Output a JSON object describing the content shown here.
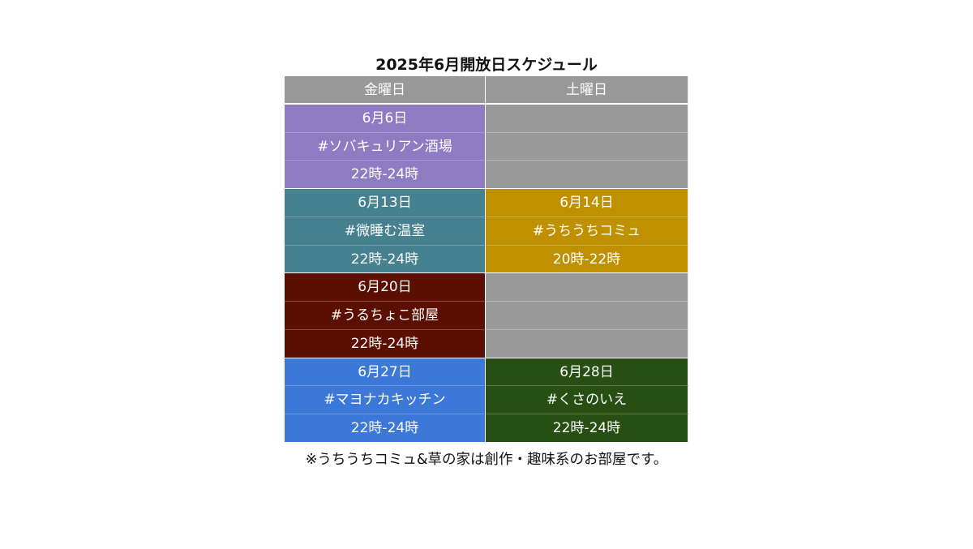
{
  "title": "2025年6月開放日スケジュール",
  "headers": {
    "friday": "金曜日",
    "saturday": "土曜日"
  },
  "colors": {
    "header": "#999999",
    "empty": "#999999",
    "week1_friday": "#8e7cc3",
    "week2_friday": "#45818e",
    "week2_saturday": "#bf9000",
    "week3_friday": "#5b0f00",
    "week4_friday": "#3c78d8",
    "week4_saturday": "#274e13"
  },
  "weeks": [
    {
      "friday": {
        "date": "6月6日",
        "room": "#ソバキュリアン酒場",
        "time": "22時-24時"
      },
      "saturday": null
    },
    {
      "friday": {
        "date": "6月13日",
        "room": "#微睡む温室",
        "time": "22時-24時"
      },
      "saturday": {
        "date": "6月14日",
        "room": "#うちうちコミュ",
        "time": "20時-22時"
      }
    },
    {
      "friday": {
        "date": "6月20日",
        "room": "#うるちょこ部屋",
        "time": "22時-24時"
      },
      "saturday": null
    },
    {
      "friday": {
        "date": "6月27日",
        "room": "#マヨナカキッチン",
        "time": "22時-24時"
      },
      "saturday": {
        "date": "6月28日",
        "room": "#くさのいえ",
        "time": "22時-24時"
      }
    }
  ],
  "note": "※うちうちコミュ&草の家は創作・趣味系のお部屋です。"
}
